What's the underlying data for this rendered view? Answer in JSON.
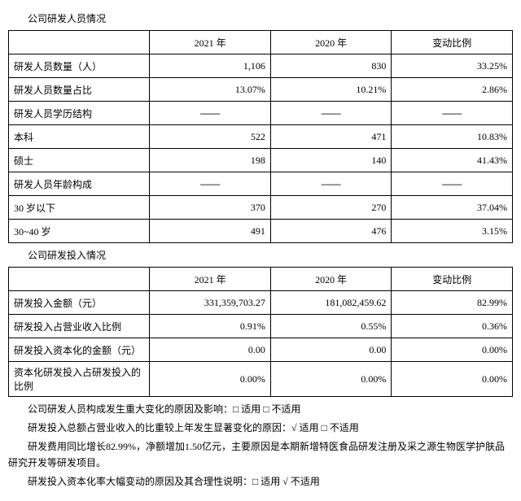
{
  "section1": {
    "title": "公司研发人员情况",
    "headers": [
      "",
      "2021 年",
      "2020 年",
      "变动比例"
    ],
    "rows": [
      {
        "label": "研发人员数量（人）",
        "c1": "1,106",
        "c2": "830",
        "c3": "33.25%",
        "dash": false
      },
      {
        "label": "研发人员数量占比",
        "c1": "13.07%",
        "c2": "10.21%",
        "c3": "2.86%",
        "dash": false
      },
      {
        "label": "研发人员学历结构",
        "c1": "——",
        "c2": "——",
        "c3": "——",
        "dash": true
      },
      {
        "label": "本科",
        "c1": "522",
        "c2": "471",
        "c3": "10.83%",
        "dash": false
      },
      {
        "label": "硕士",
        "c1": "198",
        "c2": "140",
        "c3": "41.43%",
        "dash": false
      },
      {
        "label": "研发人员年龄构成",
        "c1": "——",
        "c2": "——",
        "c3": "——",
        "dash": true
      },
      {
        "label": "30 岁以下",
        "c1": "370",
        "c2": "270",
        "c3": "37.04%",
        "dash": false
      },
      {
        "label": "30~40 岁",
        "c1": "491",
        "c2": "476",
        "c3": "3.15%",
        "dash": false
      }
    ]
  },
  "section2": {
    "title": "公司研发投入情况",
    "headers": [
      "",
      "2021 年",
      "2020 年",
      "变动比例"
    ],
    "rows": [
      {
        "label": "研发投入金额（元）",
        "c1": "331,359,703.27",
        "c2": "181,082,459.62",
        "c3": "82.99%"
      },
      {
        "label": "研发投入占营业收入比例",
        "c1": "0.91%",
        "c2": "0.55%",
        "c3": "0.36%"
      },
      {
        "label": "研发投入资本化的金额（元）",
        "c1": "0.00",
        "c2": "0.00",
        "c3": "0.00%"
      },
      {
        "label": "资本化研发投入占研发投入的比例",
        "c1": "0.00%",
        "c2": "0.00%",
        "c3": "0.00%"
      }
    ]
  },
  "notes": {
    "n1": "公司研发人员构成发生重大变化的原因及影响：□ 适用 □ 不适用",
    "n2": "研发投入总额占营业收入的比重较上年发生显著变化的原因：√ 适用 □ 不适用",
    "n3": "研发费用同比增长82.99%，净额增加1.50亿元，主要原因是本期新增特医食品研发注册及采之源生物医学护肤品研究开发等研发项目。",
    "n4": "研发投入资本化率大幅变动的原因及其合理性说明：□ 适用 √ 不适用"
  }
}
